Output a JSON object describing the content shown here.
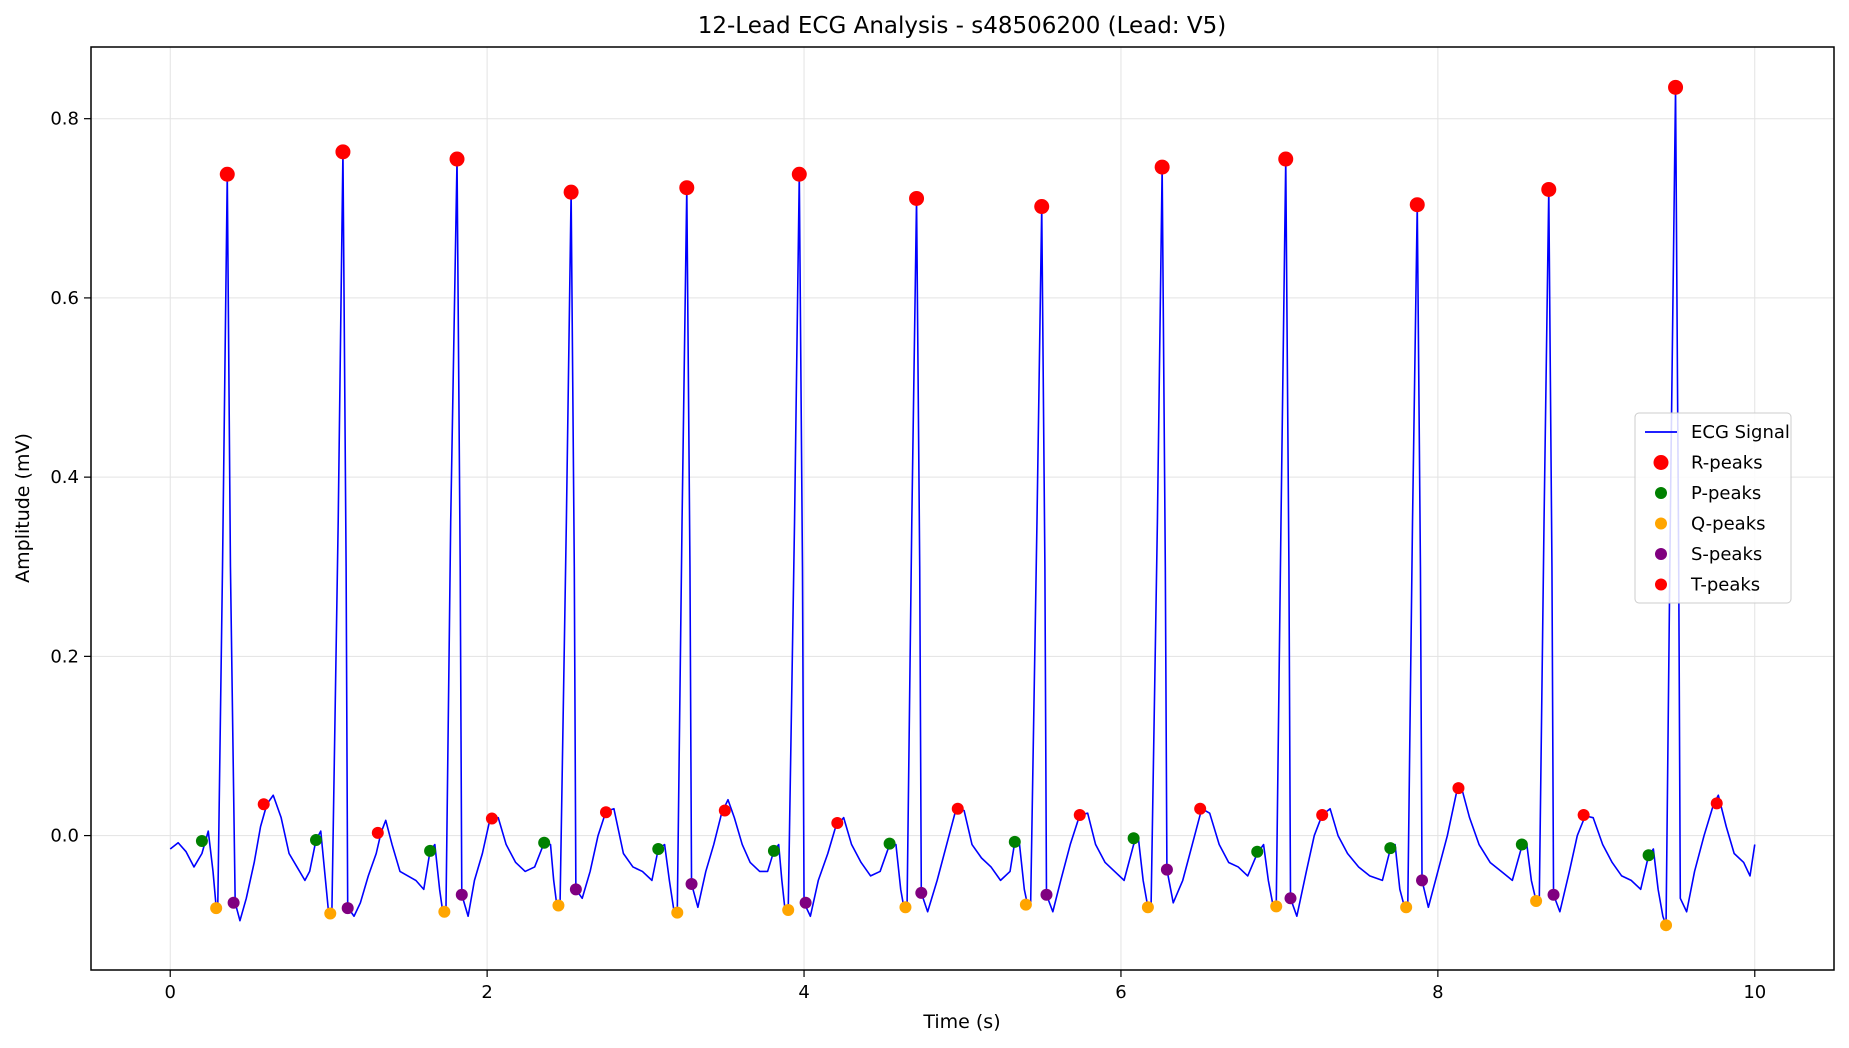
{
  "chart_data": {
    "type": "line",
    "title": "12-Lead ECG Analysis - s48506200 (Lead: V5)",
    "xlabel": "Time (s)",
    "ylabel": "Amplitude (mV)",
    "xlim": [
      -0.5,
      10.5
    ],
    "ylim": [
      -0.15,
      0.88
    ],
    "x_ticks": [
      0,
      2,
      4,
      6,
      8,
      10
    ],
    "x_tick_labels": [
      "0",
      "2",
      "4",
      "6",
      "8",
      "10"
    ],
    "y_ticks": [
      0.0,
      0.2,
      0.4,
      0.6,
      0.8
    ],
    "y_tick_labels": [
      "0.0",
      "0.2",
      "0.4",
      "0.6",
      "0.8"
    ],
    "grid": true,
    "legend_position": "center-right",
    "legend": [
      "ECG Signal",
      "R-peaks",
      "P-peaks",
      "Q-peaks",
      "S-peaks",
      "T-peaks"
    ],
    "series": [
      {
        "name": "ECG Signal",
        "kind": "line",
        "color": "#0000ff",
        "points": [
          [
            0.0,
            -0.015
          ],
          [
            0.05,
            -0.008
          ],
          [
            0.1,
            -0.018
          ],
          [
            0.15,
            -0.035
          ],
          [
            0.2,
            -0.02
          ],
          [
            0.24,
            0.005
          ],
          [
            0.27,
            -0.04
          ],
          [
            0.29,
            -0.08
          ],
          [
            0.3,
            -0.08
          ],
          [
            0.33,
            0.3
          ],
          [
            0.36,
            0.738
          ],
          [
            0.38,
            0.3
          ],
          [
            0.41,
            -0.075
          ],
          [
            0.44,
            -0.095
          ],
          [
            0.48,
            -0.07
          ],
          [
            0.53,
            -0.03
          ],
          [
            0.57,
            0.01
          ],
          [
            0.61,
            0.035
          ],
          [
            0.65,
            0.045
          ],
          [
            0.7,
            0.02
          ],
          [
            0.75,
            -0.02
          ],
          [
            0.8,
            -0.035
          ],
          [
            0.85,
            -0.05
          ],
          [
            0.88,
            -0.04
          ],
          [
            0.92,
            -0.005
          ],
          [
            0.95,
            0.005
          ],
          [
            0.98,
            -0.05
          ],
          [
            1.0,
            -0.087
          ],
          [
            1.02,
            -0.087
          ],
          [
            1.06,
            0.35
          ],
          [
            1.09,
            0.763
          ],
          [
            1.11,
            0.3
          ],
          [
            1.12,
            -0.08
          ],
          [
            1.16,
            -0.09
          ],
          [
            1.2,
            -0.075
          ],
          [
            1.25,
            -0.045
          ],
          [
            1.3,
            -0.02
          ],
          [
            1.33,
            0.003
          ],
          [
            1.36,
            0.017
          ],
          [
            1.4,
            -0.01
          ],
          [
            1.45,
            -0.04
          ],
          [
            1.5,
            -0.045
          ],
          [
            1.55,
            -0.05
          ],
          [
            1.6,
            -0.06
          ],
          [
            1.64,
            -0.017
          ],
          [
            1.67,
            -0.01
          ],
          [
            1.7,
            -0.06
          ],
          [
            1.72,
            -0.085
          ],
          [
            1.74,
            -0.085
          ],
          [
            1.77,
            0.35
          ],
          [
            1.81,
            0.755
          ],
          [
            1.83,
            0.3
          ],
          [
            1.84,
            -0.066
          ],
          [
            1.88,
            -0.09
          ],
          [
            1.92,
            -0.05
          ],
          [
            1.97,
            -0.02
          ],
          [
            2.02,
            0.02
          ],
          [
            2.07,
            0.02
          ],
          [
            2.12,
            -0.01
          ],
          [
            2.18,
            -0.03
          ],
          [
            2.24,
            -0.04
          ],
          [
            2.3,
            -0.035
          ],
          [
            2.36,
            -0.008
          ],
          [
            2.4,
            -0.01
          ],
          [
            2.42,
            -0.05
          ],
          [
            2.44,
            -0.078
          ],
          [
            2.46,
            -0.078
          ],
          [
            2.5,
            0.35
          ],
          [
            2.53,
            0.718
          ],
          [
            2.55,
            0.3
          ],
          [
            2.56,
            -0.06
          ],
          [
            2.6,
            -0.07
          ],
          [
            2.65,
            -0.04
          ],
          [
            2.7,
            0.0
          ],
          [
            2.75,
            0.027
          ],
          [
            2.8,
            0.03
          ],
          [
            2.86,
            -0.02
          ],
          [
            2.92,
            -0.035
          ],
          [
            2.98,
            -0.04
          ],
          [
            3.04,
            -0.05
          ],
          [
            3.08,
            -0.015
          ],
          [
            3.12,
            -0.01
          ],
          [
            3.15,
            -0.05
          ],
          [
            3.18,
            -0.085
          ],
          [
            3.2,
            -0.085
          ],
          [
            3.23,
            0.35
          ],
          [
            3.26,
            0.723
          ],
          [
            3.28,
            0.3
          ],
          [
            3.29,
            -0.054
          ],
          [
            3.33,
            -0.08
          ],
          [
            3.38,
            -0.04
          ],
          [
            3.43,
            -0.01
          ],
          [
            3.48,
            0.025
          ],
          [
            3.52,
            0.04
          ],
          [
            3.56,
            0.02
          ],
          [
            3.61,
            -0.01
          ],
          [
            3.66,
            -0.03
          ],
          [
            3.72,
            -0.04
          ],
          [
            3.77,
            -0.04
          ],
          [
            3.81,
            -0.017
          ],
          [
            3.84,
            -0.01
          ],
          [
            3.86,
            -0.05
          ],
          [
            3.88,
            -0.083
          ],
          [
            3.9,
            -0.083
          ],
          [
            3.94,
            0.35
          ],
          [
            3.97,
            0.738
          ],
          [
            3.99,
            0.3
          ],
          [
            4.0,
            -0.075
          ],
          [
            4.04,
            -0.09
          ],
          [
            4.09,
            -0.05
          ],
          [
            4.15,
            -0.02
          ],
          [
            4.2,
            0.01
          ],
          [
            4.25,
            0.02
          ],
          [
            4.3,
            -0.01
          ],
          [
            4.36,
            -0.03
          ],
          [
            4.42,
            -0.045
          ],
          [
            4.48,
            -0.04
          ],
          [
            4.54,
            -0.01
          ],
          [
            4.58,
            -0.01
          ],
          [
            4.61,
            -0.06
          ],
          [
            4.63,
            -0.08
          ],
          [
            4.65,
            -0.08
          ],
          [
            4.68,
            0.35
          ],
          [
            4.71,
            0.711
          ],
          [
            4.73,
            0.3
          ],
          [
            4.74,
            -0.064
          ],
          [
            4.78,
            -0.085
          ],
          [
            4.84,
            -0.05
          ],
          [
            4.9,
            -0.01
          ],
          [
            4.96,
            0.03
          ],
          [
            5.01,
            0.028
          ],
          [
            5.06,
            -0.01
          ],
          [
            5.12,
            -0.025
          ],
          [
            5.18,
            -0.035
          ],
          [
            5.24,
            -0.05
          ],
          [
            5.3,
            -0.04
          ],
          [
            5.33,
            -0.007
          ],
          [
            5.36,
            -0.01
          ],
          [
            5.39,
            -0.06
          ],
          [
            5.41,
            -0.077
          ],
          [
            5.43,
            -0.077
          ],
          [
            5.47,
            0.35
          ],
          [
            5.5,
            0.702
          ],
          [
            5.52,
            0.3
          ],
          [
            5.53,
            -0.066
          ],
          [
            5.57,
            -0.085
          ],
          [
            5.62,
            -0.05
          ],
          [
            5.68,
            -0.01
          ],
          [
            5.74,
            0.023
          ],
          [
            5.79,
            0.025
          ],
          [
            5.84,
            -0.01
          ],
          [
            5.9,
            -0.03
          ],
          [
            5.96,
            -0.04
          ],
          [
            6.02,
            -0.05
          ],
          [
            6.08,
            -0.01
          ],
          [
            6.11,
            -0.003
          ],
          [
            6.14,
            -0.05
          ],
          [
            6.17,
            -0.08
          ],
          [
            6.19,
            -0.08
          ],
          [
            6.23,
            0.35
          ],
          [
            6.26,
            0.746
          ],
          [
            6.28,
            0.3
          ],
          [
            6.29,
            -0.038
          ],
          [
            6.33,
            -0.075
          ],
          [
            6.39,
            -0.05
          ],
          [
            6.45,
            -0.01
          ],
          [
            6.51,
            0.03
          ],
          [
            6.56,
            0.025
          ],
          [
            6.62,
            -0.01
          ],
          [
            6.68,
            -0.03
          ],
          [
            6.74,
            -0.035
          ],
          [
            6.8,
            -0.045
          ],
          [
            6.86,
            -0.02
          ],
          [
            6.9,
            -0.01
          ],
          [
            6.93,
            -0.05
          ],
          [
            6.96,
            -0.078
          ],
          [
            6.98,
            -0.078
          ],
          [
            7.01,
            0.35
          ],
          [
            7.04,
            0.755
          ],
          [
            7.06,
            0.3
          ],
          [
            7.07,
            -0.07
          ],
          [
            7.11,
            -0.09
          ],
          [
            7.17,
            -0.04
          ],
          [
            7.22,
            0.0
          ],
          [
            7.27,
            0.023
          ],
          [
            7.32,
            0.03
          ],
          [
            7.37,
            0.0
          ],
          [
            7.43,
            -0.02
          ],
          [
            7.5,
            -0.035
          ],
          [
            7.57,
            -0.045
          ],
          [
            7.65,
            -0.05
          ],
          [
            7.7,
            -0.015
          ],
          [
            7.73,
            -0.01
          ],
          [
            7.76,
            -0.06
          ],
          [
            7.79,
            -0.08
          ],
          [
            7.81,
            -0.08
          ],
          [
            7.84,
            0.35
          ],
          [
            7.87,
            0.704
          ],
          [
            7.89,
            0.3
          ],
          [
            7.9,
            -0.05
          ],
          [
            7.94,
            -0.08
          ],
          [
            8.0,
            -0.04
          ],
          [
            8.06,
            0.0
          ],
          [
            8.12,
            0.05
          ],
          [
            8.15,
            0.053
          ],
          [
            8.2,
            0.02
          ],
          [
            8.26,
            -0.01
          ],
          [
            8.33,
            -0.03
          ],
          [
            8.4,
            -0.04
          ],
          [
            8.47,
            -0.05
          ],
          [
            8.53,
            -0.012
          ],
          [
            8.56,
            -0.008
          ],
          [
            8.59,
            -0.05
          ],
          [
            8.62,
            -0.073
          ],
          [
            8.64,
            -0.073
          ],
          [
            8.67,
            0.35
          ],
          [
            8.7,
            0.721
          ],
          [
            8.72,
            0.3
          ],
          [
            8.73,
            -0.066
          ],
          [
            8.77,
            -0.085
          ],
          [
            8.83,
            -0.04
          ],
          [
            8.88,
            0.0
          ],
          [
            8.93,
            0.022
          ],
          [
            8.98,
            0.02
          ],
          [
            9.04,
            -0.01
          ],
          [
            9.1,
            -0.03
          ],
          [
            9.16,
            -0.045
          ],
          [
            9.22,
            -0.05
          ],
          [
            9.28,
            -0.06
          ],
          [
            9.33,
            -0.022
          ],
          [
            9.36,
            -0.015
          ],
          [
            9.39,
            -0.06
          ],
          [
            9.42,
            -0.09
          ],
          [
            9.44,
            -0.1
          ],
          [
            9.47,
            0.4
          ],
          [
            9.5,
            0.835
          ],
          [
            9.52,
            0.3
          ],
          [
            9.53,
            -0.07
          ],
          [
            9.57,
            -0.085
          ],
          [
            9.62,
            -0.04
          ],
          [
            9.68,
            0.0
          ],
          [
            9.74,
            0.035
          ],
          [
            9.77,
            0.045
          ],
          [
            9.82,
            0.01
          ],
          [
            9.87,
            -0.02
          ],
          [
            9.93,
            -0.03
          ],
          [
            9.97,
            -0.045
          ],
          [
            10.0,
            -0.01
          ]
        ]
      },
      {
        "name": "R-peaks",
        "kind": "scatter",
        "color": "#ff0000",
        "x": [
          0.36,
          1.09,
          1.81,
          2.53,
          3.26,
          3.97,
          4.71,
          5.5,
          6.26,
          7.04,
          7.87,
          8.7,
          9.5
        ],
        "y": [
          0.738,
          0.763,
          0.755,
          0.718,
          0.723,
          0.738,
          0.711,
          0.702,
          0.746,
          0.755,
          0.704,
          0.721,
          0.835
        ]
      },
      {
        "name": "P-peaks",
        "kind": "scatter",
        "color": "#008000",
        "x": [
          0.2,
          0.92,
          1.64,
          2.36,
          3.08,
          3.81,
          4.54,
          5.33,
          6.08,
          6.86,
          7.7,
          8.53,
          9.33
        ],
        "y": [
          -0.006,
          -0.005,
          -0.017,
          -0.008,
          -0.015,
          -0.017,
          -0.009,
          -0.007,
          -0.003,
          -0.018,
          -0.014,
          -0.01,
          -0.022
        ]
      },
      {
        "name": "Q-peaks",
        "kind": "scatter",
        "color": "#ffa500",
        "x": [
          0.29,
          1.01,
          1.73,
          2.45,
          3.2,
          3.9,
          4.64,
          5.4,
          6.17,
          6.98,
          7.8,
          8.62,
          9.44
        ],
        "y": [
          -0.081,
          -0.087,
          -0.085,
          -0.078,
          -0.086,
          -0.083,
          -0.08,
          -0.077,
          -0.08,
          -0.079,
          -0.08,
          -0.073,
          -0.1
        ]
      },
      {
        "name": "S-peaks",
        "kind": "scatter",
        "color": "#800080",
        "x": [
          0.4,
          1.12,
          1.84,
          2.56,
          3.29,
          4.01,
          4.74,
          5.53,
          6.29,
          7.07,
          7.9,
          8.73
        ],
        "y": [
          -0.075,
          -0.081,
          -0.066,
          -0.06,
          -0.054,
          -0.075,
          -0.064,
          -0.066,
          -0.038,
          -0.07,
          -0.05,
          -0.066
        ]
      },
      {
        "name": "T-peaks",
        "kind": "scatter",
        "color": "#ff0000",
        "x": [
          0.59,
          1.31,
          2.03,
          2.75,
          3.5,
          4.21,
          4.97,
          5.74,
          6.5,
          7.27,
          8.13,
          8.92,
          9.76
        ],
        "y": [
          0.035,
          0.003,
          0.019,
          0.026,
          0.028,
          0.014,
          0.03,
          0.023,
          0.03,
          0.023,
          0.053,
          0.023,
          0.036
        ]
      }
    ]
  }
}
